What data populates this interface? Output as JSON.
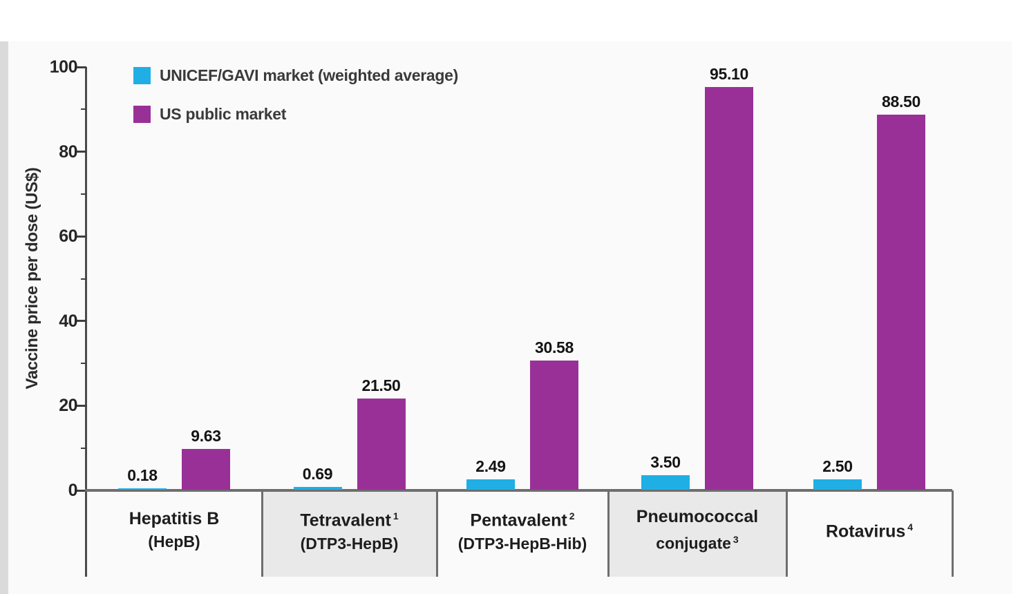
{
  "chart_data": {
    "type": "bar",
    "title": "",
    "ylabel": "Vaccine price per dose (US$)",
    "ylim": [
      0,
      100
    ],
    "yticks": [
      "0",
      "20",
      "40",
      "60",
      "80",
      "100"
    ],
    "ytick_step": 20,
    "yminor_step": 10,
    "grid": false,
    "legend_position": "top-left",
    "categories": [
      {
        "line1": "Hepatitis B",
        "line1_sup": "",
        "line2": "(HepB)",
        "line2_sup": "",
        "shaded": false
      },
      {
        "line1": "Tetravalent",
        "line1_sup": "1",
        "line2": "(DTP3-HepB)",
        "line2_sup": "",
        "shaded": true
      },
      {
        "line1": "Pentavalent",
        "line1_sup": "2",
        "line2": "(DTP3-HepB-Hib)",
        "line2_sup": "",
        "shaded": false
      },
      {
        "line1": "Pneumococcal",
        "line1_sup": "",
        "line2": "conjugate",
        "line2_sup": "3",
        "shaded": true
      },
      {
        "line1": "Rotavirus",
        "line1_sup": "4",
        "line2": "",
        "line2_sup": "",
        "shaded": false
      }
    ],
    "series": [
      {
        "name": "UNICEF/GAVI market (weighted average)",
        "color": "#1fafe4",
        "values": [
          0.18,
          0.69,
          2.49,
          3.5,
          2.5
        ],
        "labels": [
          "0.18",
          "0.69",
          "2.49",
          "3.50",
          "2.50"
        ]
      },
      {
        "name": "US public market",
        "color": "#993097",
        "values": [
          9.63,
          21.5,
          30.58,
          95.1,
          88.5
        ],
        "labels": [
          "9.63",
          "21.50",
          "30.58",
          "95.10",
          "88.50"
        ]
      }
    ]
  },
  "colors": {
    "axis": "#4a4a4a",
    "baseline": "#6e6e6e",
    "divider": "#6e6e6e",
    "cell_shade": "#e9e9e9",
    "surface": "#fafafa",
    "left_strip": "#dadada"
  }
}
